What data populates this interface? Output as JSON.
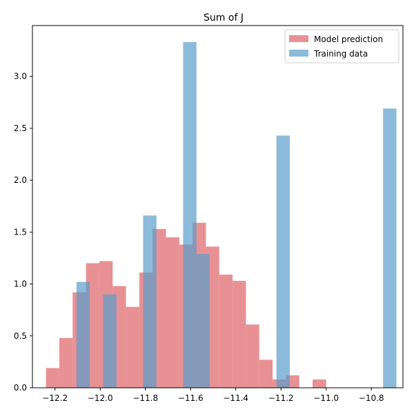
{
  "chart_data": {
    "type": "bar",
    "title": "Sum of J",
    "xlabel": "",
    "ylabel": "",
    "xlim": [
      -12.3,
      -10.66
    ],
    "ylim": [
      0,
      3.49
    ],
    "x_ticks": [
      {
        "value": -12.2,
        "label": "−12.2"
      },
      {
        "value": -12.0,
        "label": "−12.0"
      },
      {
        "value": -11.8,
        "label": "−11.8"
      },
      {
        "value": -11.6,
        "label": "−11.6"
      },
      {
        "value": -11.4,
        "label": "−11.4"
      },
      {
        "value": -11.2,
        "label": "−11.2"
      },
      {
        "value": -11.0,
        "label": "−11.0"
      },
      {
        "value": -10.8,
        "label": "−10.8"
      }
    ],
    "y_ticks": [
      {
        "value": 0.0,
        "label": "0.0"
      },
      {
        "value": 0.5,
        "label": "0.5"
      },
      {
        "value": 1.0,
        "label": "1.0"
      },
      {
        "value": 1.5,
        "label": "1.5"
      },
      {
        "value": 2.0,
        "label": "2.0"
      },
      {
        "value": 2.5,
        "label": "2.5"
      },
      {
        "value": 3.0,
        "label": "3.0"
      }
    ],
    "grid": false,
    "legend_position": "top-right",
    "series": [
      {
        "name": "Model prediction",
        "color": "#e06c70",
        "opacity": 0.75,
        "bins": [
          {
            "x0": -12.24,
            "x1": -12.181,
            "value": 0.19
          },
          {
            "x0": -12.181,
            "x1": -12.122,
            "value": 0.48
          },
          {
            "x0": -12.122,
            "x1": -12.063,
            "value": 0.92
          },
          {
            "x0": -12.063,
            "x1": -12.004,
            "value": 1.2
          },
          {
            "x0": -12.004,
            "x1": -11.945,
            "value": 1.22
          },
          {
            "x0": -11.945,
            "x1": -11.886,
            "value": 0.98
          },
          {
            "x0": -11.886,
            "x1": -11.827,
            "value": 0.78
          },
          {
            "x0": -11.827,
            "x1": -11.768,
            "value": 1.11
          },
          {
            "x0": -11.768,
            "x1": -11.709,
            "value": 1.53
          },
          {
            "x0": -11.709,
            "x1": -11.65,
            "value": 1.45
          },
          {
            "x0": -11.65,
            "x1": -11.591,
            "value": 1.38
          },
          {
            "x0": -11.591,
            "x1": -11.532,
            "value": 1.59
          },
          {
            "x0": -11.532,
            "x1": -11.473,
            "value": 1.36
          },
          {
            "x0": -11.473,
            "x1": -11.414,
            "value": 1.09
          },
          {
            "x0": -11.414,
            "x1": -11.355,
            "value": 1.03
          },
          {
            "x0": -11.355,
            "x1": -11.296,
            "value": 0.61
          },
          {
            "x0": -11.296,
            "x1": -11.237,
            "value": 0.27
          },
          {
            "x0": -11.237,
            "x1": -11.178,
            "value": 0.08
          },
          {
            "x0": -11.178,
            "x1": -11.119,
            "value": 0.12
          },
          {
            "x0": -11.119,
            "x1": -11.06,
            "value": 0.0
          },
          {
            "x0": -11.06,
            "x1": -11.0,
            "value": 0.08
          }
        ]
      },
      {
        "name": "Training data",
        "color": "#5b9dcb",
        "opacity": 0.7,
        "bins": [
          {
            "x0": -12.105,
            "x1": -12.046,
            "value": 1.02
          },
          {
            "x0": -12.046,
            "x1": -11.987,
            "value": 0.0
          },
          {
            "x0": -11.987,
            "x1": -11.928,
            "value": 0.9
          },
          {
            "x0": -11.928,
            "x1": -11.869,
            "value": 0.0
          },
          {
            "x0": -11.869,
            "x1": -11.81,
            "value": 0.0
          },
          {
            "x0": -11.81,
            "x1": -11.751,
            "value": 1.66
          },
          {
            "x0": -11.751,
            "x1": -11.692,
            "value": 0.0
          },
          {
            "x0": -11.692,
            "x1": -11.633,
            "value": 0.0
          },
          {
            "x0": -11.633,
            "x1": -11.574,
            "value": 3.33
          },
          {
            "x0": -11.574,
            "x1": -11.515,
            "value": 1.29
          },
          {
            "x0": -11.515,
            "x1": -11.456,
            "value": 0.0
          },
          {
            "x0": -11.456,
            "x1": -11.397,
            "value": 0.0
          },
          {
            "x0": -11.397,
            "x1": -11.338,
            "value": 0.0
          },
          {
            "x0": -11.338,
            "x1": -11.279,
            "value": 0.0
          },
          {
            "x0": -11.279,
            "x1": -11.22,
            "value": 0.0
          },
          {
            "x0": -11.22,
            "x1": -11.161,
            "value": 2.43
          },
          {
            "x0": -11.161,
            "x1": -11.102,
            "value": 0.0
          },
          {
            "x0": -11.102,
            "x1": -11.043,
            "value": 0.0
          },
          {
            "x0": -11.043,
            "x1": -10.984,
            "value": 0.0
          },
          {
            "x0": -10.984,
            "x1": -10.925,
            "value": 0.0
          },
          {
            "x0": -10.925,
            "x1": -10.866,
            "value": 0.0
          },
          {
            "x0": -10.866,
            "x1": -10.807,
            "value": 0.0
          },
          {
            "x0": -10.807,
            "x1": -10.748,
            "value": 0.0
          },
          {
            "x0": -10.748,
            "x1": -10.689,
            "value": 2.69
          }
        ]
      }
    ]
  }
}
